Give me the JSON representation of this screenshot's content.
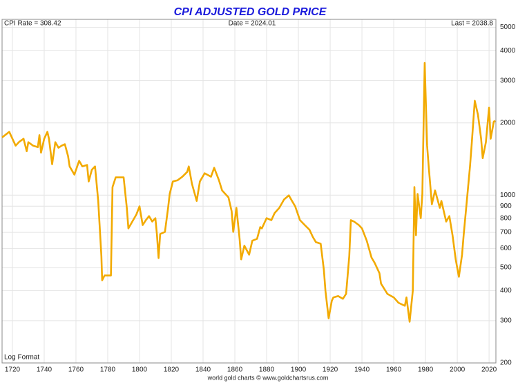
{
  "chart_data": {
    "type": "line",
    "title": "CPI ADJUSTED GOLD PRICE",
    "annotations": [
      "CPI Rate = 308.42",
      "Date = 2024.01",
      "Last = 2038.8",
      "Log Format",
      "world gold charts © www.goldchartsrus.com"
    ],
    "x": [
      1713.5,
      1718,
      1720,
      1722,
      1724,
      1727,
      1729,
      1730,
      1733,
      1736,
      1737,
      1738,
      1740,
      1742,
      1743,
      1745,
      1747,
      1749,
      1751,
      1753,
      1755,
      1756,
      1759,
      1762,
      1764,
      1767,
      1768,
      1770,
      1772,
      1774,
      1776,
      1776.5,
      1778,
      1782,
      1783,
      1785,
      1790,
      1792,
      1793,
      1796,
      1798,
      1800,
      1802,
      1804,
      1806,
      1808,
      1810,
      1811,
      1812,
      1813,
      1816,
      1818,
      1819,
      1821,
      1824,
      1827,
      1830,
      1831,
      1833,
      1836,
      1838,
      1841,
      1845,
      1847,
      1850,
      1852,
      1856,
      1858,
      1859,
      1861,
      1863,
      1864,
      1866,
      1869,
      1871,
      1874,
      1876,
      1877,
      1880,
      1883,
      1885,
      1888,
      1891,
      1894,
      1896,
      1898,
      1901,
      1904,
      1907,
      1909,
      1911,
      1914,
      1916,
      1917,
      1919,
      1921,
      1922,
      1925,
      1928,
      1930,
      1932,
      1933,
      1935,
      1938,
      1940,
      1943,
      1946,
      1948,
      1951,
      1952,
      1956,
      1960,
      1963,
      1967,
      1968,
      1970,
      1972,
      1973,
      1974,
      1975,
      1977,
      1978,
      1979.5,
      1981,
      1982,
      1984,
      1986,
      1989,
      1990,
      1993,
      1995,
      1997,
      1999,
      2001,
      2003,
      2004,
      2006,
      2008,
      2009,
      2011,
      2013,
      2015,
      2016,
      2018,
      2020,
      2021,
      2023,
      2024.01
    ],
    "values": [
      1740,
      1836,
      1718,
      1608,
      1662,
      1718,
      1524,
      1662,
      1608,
      1586,
      1780,
      1504,
      1718,
      1836,
      1718,
      1345,
      1662,
      1576,
      1608,
      1630,
      1456,
      1318,
      1218,
      1390,
      1318,
      1336,
      1140,
      1276,
      1318,
      946,
      557,
      442,
      463,
      463,
      1081,
      1186,
      1186,
      886,
      727,
      787,
      830,
      898,
      751,
      787,
      818,
      776,
      802,
      681,
      547,
      689,
      703,
      886,
      1012,
      1140,
      1154,
      1194,
      1250,
      1318,
      1116,
      946,
      1140,
      1234,
      1194,
      1300,
      1154,
      1046,
      979,
      857,
      703,
      886,
      658,
      540,
      616,
      565,
      646,
      658,
      736,
      727,
      802,
      787,
      841,
      886,
      960,
      998,
      946,
      898,
      787,
      751,
      718,
      671,
      637,
      628,
      489,
      400,
      307,
      363,
      375,
      380,
      370,
      388,
      557,
      787,
      776,
      751,
      727,
      646,
      550,
      522,
      473,
      428,
      388,
      375,
      356,
      346,
      375,
      297,
      400,
      1081,
      681,
      1012,
      802,
      1012,
      3556,
      1608,
      1318,
      916,
      1046,
      886,
      946,
      776,
      818,
      681,
      540,
      457,
      565,
      681,
      946,
      1318,
      1608,
      2472,
      2165,
      1718,
      1426,
      1662,
      2314,
      1718,
      2026,
      2038.8
    ],
    "color": "#f2aa00",
    "xlim": [
      1713.5,
      2024.3
    ],
    "ylim": [
      200,
      5400
    ],
    "xticks": [
      1720,
      1740,
      1760,
      1780,
      1800,
      1820,
      1840,
      1860,
      1880,
      1900,
      1920,
      1940,
      1960,
      1980,
      2000,
      2020
    ],
    "yticks": [
      200,
      300,
      400,
      500,
      600,
      700,
      800,
      900,
      1000,
      2000,
      3000,
      4000,
      5000
    ],
    "log_scale": true,
    "grid": true
  }
}
